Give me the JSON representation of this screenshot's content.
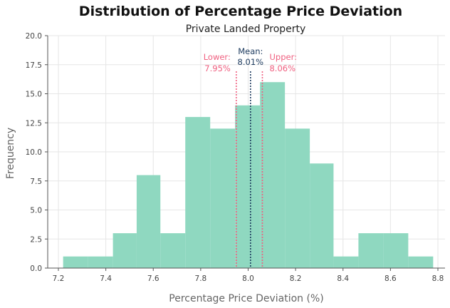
{
  "chart_data": {
    "type": "bar",
    "title": "Distribution of Percentage Price Deviation",
    "subtitle": "Private Landed Property",
    "xlabel": "Percentage Price Deviation (%)",
    "ylabel": "Frequency",
    "xlim": [
      7.155,
      8.83
    ],
    "ylim": [
      0,
      20
    ],
    "xticks": [
      7.2,
      7.4,
      7.6,
      7.8,
      8.0,
      8.2,
      8.4,
      8.6,
      8.8
    ],
    "yticks": [
      0.0,
      2.5,
      5.0,
      7.5,
      10.0,
      12.5,
      15.0,
      17.5,
      20.0
    ],
    "grid": true,
    "bar_color": "#8fd8c0",
    "bins": [
      {
        "start": 7.22,
        "end": 7.325,
        "count": 1
      },
      {
        "start": 7.325,
        "end": 7.43,
        "count": 1
      },
      {
        "start": 7.43,
        "end": 7.53,
        "count": 3
      },
      {
        "start": 7.53,
        "end": 7.63,
        "count": 8
      },
      {
        "start": 7.63,
        "end": 7.735,
        "count": 3
      },
      {
        "start": 7.735,
        "end": 7.84,
        "count": 13
      },
      {
        "start": 7.84,
        "end": 7.945,
        "count": 12
      },
      {
        "start": 7.945,
        "end": 8.05,
        "count": 14
      },
      {
        "start": 8.05,
        "end": 8.155,
        "count": 16
      },
      {
        "start": 8.155,
        "end": 8.26,
        "count": 12
      },
      {
        "start": 8.26,
        "end": 8.36,
        "count": 9
      },
      {
        "start": 8.36,
        "end": 8.465,
        "count": 1
      },
      {
        "start": 8.465,
        "end": 8.57,
        "count": 3
      },
      {
        "start": 8.57,
        "end": 8.675,
        "count": 3
      },
      {
        "start": 8.675,
        "end": 8.78,
        "count": 1
      }
    ],
    "reference_lines": [
      {
        "kind": "lower",
        "value": 7.95,
        "label_top": "Lower:",
        "label_bottom": "7.95%",
        "color": "#f06080"
      },
      {
        "kind": "mean",
        "value": 8.01,
        "label_top": "Mean:",
        "label_bottom": "8.01%",
        "color": "#1c3a5e"
      },
      {
        "kind": "upper",
        "value": 8.06,
        "label_top": "Upper:",
        "label_bottom": "8.06%",
        "color": "#f06080"
      }
    ]
  }
}
